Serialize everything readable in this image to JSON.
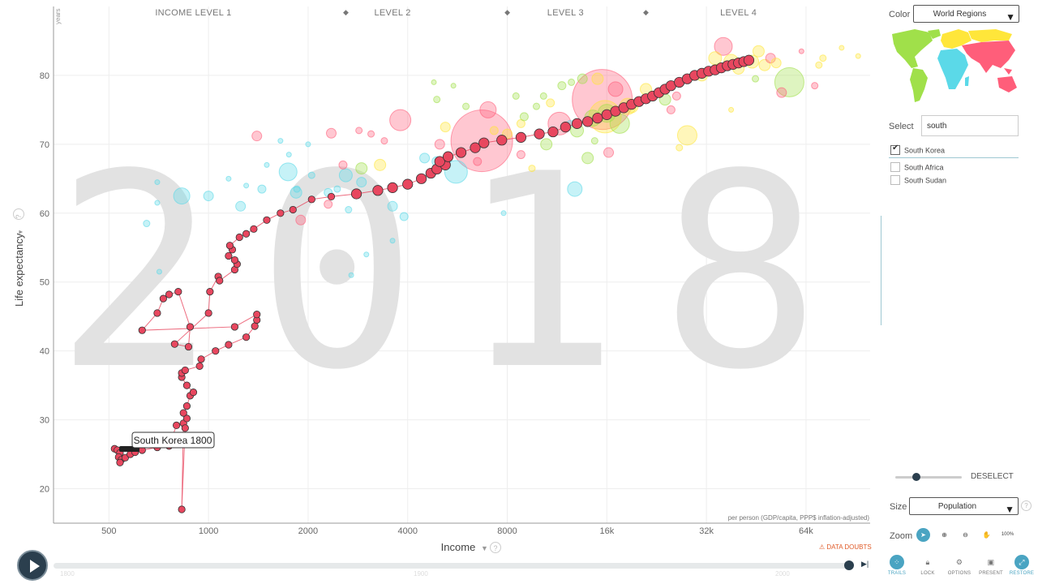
{
  "chart_data": {
    "type": "scatter",
    "watermark_year": "2018",
    "x_axis": {
      "label": "Income",
      "unit": "per person (GDP/capita, PPP$ inflation-adjusted)",
      "scale": "log",
      "range": [
        340,
        100000
      ],
      "ticks": [
        {
          "value": 500,
          "label": "500"
        },
        {
          "value": 1000,
          "label": "1000"
        },
        {
          "value": 2000,
          "label": "2000"
        },
        {
          "value": 4000,
          "label": "4000"
        },
        {
          "value": 8000,
          "label": "8000"
        },
        {
          "value": 16000,
          "label": "16k"
        },
        {
          "value": 32000,
          "label": "32k"
        },
        {
          "value": 64000,
          "label": "64k"
        }
      ]
    },
    "y_axis": {
      "label": "Life expectancy",
      "unit": "years",
      "range": [
        15,
        90
      ],
      "ticks": [
        20,
        30,
        40,
        50,
        60,
        70,
        80
      ]
    },
    "income_levels": [
      {
        "label": "INCOME LEVEL 1",
        "x": 900
      },
      {
        "label": "LEVEL 2",
        "x": 3600
      },
      {
        "label": "LEVEL 3",
        "x": 12000
      },
      {
        "label": "LEVEL 4",
        "x": 40000
      }
    ],
    "income_level_markers": [
      2600,
      8000,
      21000
    ],
    "region_colors": {
      "africa": "#5bd9e8",
      "americas": "#a0e04a",
      "asia": "#ff5e7a",
      "europe": "#ffe63a"
    },
    "trail": {
      "name": "South Korea",
      "color": "#e8475f",
      "tooltip": "South Korea 1800",
      "points": [
        [
          520,
          25.8
        ],
        [
          530,
          25.6
        ],
        [
          540,
          25.2
        ],
        [
          535,
          24.6
        ],
        [
          545,
          24.2
        ],
        [
          540,
          23.8
        ],
        [
          560,
          24.5
        ],
        [
          580,
          25.0
        ],
        [
          600,
          25.3
        ],
        [
          630,
          25.6
        ],
        [
          700,
          26.0
        ],
        [
          760,
          26.2
        ],
        [
          800,
          29.2
        ],
        [
          840,
          29.5
        ],
        [
          830,
          17.0
        ],
        [
          850,
          28.8
        ],
        [
          860,
          30.2
        ],
        [
          840,
          31.0
        ],
        [
          860,
          32.0
        ],
        [
          880,
          33.5
        ],
        [
          900,
          34.0
        ],
        [
          860,
          35.0
        ],
        [
          830,
          36.2
        ],
        [
          830,
          36.8
        ],
        [
          850,
          37.2
        ],
        [
          940,
          37.8
        ],
        [
          950,
          38.8
        ],
        [
          1050,
          40.0
        ],
        [
          1150,
          40.9
        ],
        [
          1300,
          42.0
        ],
        [
          1380,
          43.6
        ],
        [
          1400,
          44.5
        ],
        [
          1400,
          45.3
        ],
        [
          1200,
          43.5
        ],
        [
          630,
          43.0
        ],
        [
          700,
          45.5
        ],
        [
          730,
          47.6
        ],
        [
          760,
          48.2
        ],
        [
          810,
          48.6
        ],
        [
          880,
          43.5
        ],
        [
          870,
          40.6
        ],
        [
          790,
          41.0
        ],
        [
          1000,
          45.5
        ],
        [
          1010,
          48.6
        ],
        [
          1070,
          50.8
        ],
        [
          1080,
          50.2
        ],
        [
          1200,
          51.8
        ],
        [
          1220,
          52.6
        ],
        [
          1200,
          53.2
        ],
        [
          1150,
          53.8
        ],
        [
          1180,
          54.7
        ],
        [
          1160,
          55.3
        ],
        [
          1240,
          56.5
        ],
        [
          1300,
          57.0
        ],
        [
          1370,
          57.7
        ],
        [
          1500,
          59.0
        ],
        [
          1650,
          60.0
        ],
        [
          1800,
          60.5
        ],
        [
          2050,
          62.0
        ],
        [
          2350,
          62.4
        ],
        [
          2800,
          62.8
        ],
        [
          3250,
          63.3
        ],
        [
          3600,
          63.7
        ],
        [
          4000,
          64.2
        ],
        [
          4400,
          65.0
        ],
        [
          4700,
          65.8
        ],
        [
          4900,
          66.4
        ],
        [
          5200,
          67.0
        ],
        [
          5000,
          67.5
        ],
        [
          5300,
          68.2
        ],
        [
          5800,
          68.8
        ],
        [
          6400,
          69.5
        ],
        [
          6800,
          70.2
        ],
        [
          7700,
          70.6
        ],
        [
          8800,
          71.0
        ],
        [
          10000,
          71.5
        ],
        [
          11000,
          71.8
        ],
        [
          12000,
          72.5
        ],
        [
          13000,
          73.0
        ],
        [
          14000,
          73.3
        ],
        [
          15000,
          73.8
        ],
        [
          16000,
          74.3
        ],
        [
          17000,
          74.8
        ],
        [
          18000,
          75.3
        ],
        [
          19000,
          75.8
        ],
        [
          20000,
          76.2
        ],
        [
          21000,
          76.6
        ],
        [
          22000,
          77.0
        ],
        [
          23000,
          77.5
        ],
        [
          24000,
          78.0
        ],
        [
          25000,
          78.5
        ],
        [
          26500,
          79.0
        ],
        [
          28000,
          79.5
        ],
        [
          29500,
          80.0
        ],
        [
          31000,
          80.3
        ],
        [
          32500,
          80.6
        ],
        [
          34000,
          80.8
        ],
        [
          35500,
          81.1
        ],
        [
          37000,
          81.4
        ],
        [
          38500,
          81.6
        ],
        [
          40000,
          81.8
        ],
        [
          41500,
          82.0
        ],
        [
          43000,
          82.2
        ]
      ]
    },
    "bubbles": [
      {
        "x": 6700,
        "y": 70.5,
        "r": 38,
        "region": "asia"
      },
      {
        "x": 15500,
        "y": 76.5,
        "r": 37,
        "region": "asia"
      },
      {
        "x": 57000,
        "y": 79,
        "r": 18,
        "region": "americas"
      },
      {
        "x": 15800,
        "y": 74,
        "r": 20,
        "region": "europe"
      },
      {
        "x": 11500,
        "y": 73,
        "r": 14,
        "region": "asia"
      },
      {
        "x": 3800,
        "y": 73.5,
        "r": 13,
        "region": "asia"
      },
      {
        "x": 5600,
        "y": 66,
        "r": 14,
        "region": "africa"
      },
      {
        "x": 7000,
        "y": 75,
        "r": 10,
        "region": "asia"
      },
      {
        "x": 36000,
        "y": 84.2,
        "r": 11,
        "region": "asia"
      },
      {
        "x": 28000,
        "y": 71.3,
        "r": 12,
        "region": "europe"
      },
      {
        "x": 17500,
        "y": 73,
        "r": 12,
        "region": "americas"
      },
      {
        "x": 14000,
        "y": 68,
        "r": 7,
        "region": "americas"
      },
      {
        "x": 12800,
        "y": 63.5,
        "r": 9,
        "region": "africa"
      },
      {
        "x": 18500,
        "y": 75.5,
        "r": 10,
        "region": "europe"
      },
      {
        "x": 16000,
        "y": 74.5,
        "r": 11,
        "region": "americas"
      },
      {
        "x": 14500,
        "y": 73.8,
        "r": 10,
        "region": "americas"
      },
      {
        "x": 1740,
        "y": 66,
        "r": 11,
        "region": "africa"
      },
      {
        "x": 2600,
        "y": 65.5,
        "r": 8,
        "region": "africa"
      },
      {
        "x": 2900,
        "y": 64.5,
        "r": 6,
        "region": "africa"
      },
      {
        "x": 1840,
        "y": 63,
        "r": 7,
        "region": "africa"
      },
      {
        "x": 2300,
        "y": 63,
        "r": 5,
        "region": "africa"
      },
      {
        "x": 830,
        "y": 62.5,
        "r": 10,
        "region": "africa"
      },
      {
        "x": 1000,
        "y": 62.5,
        "r": 6,
        "region": "africa"
      },
      {
        "x": 1250,
        "y": 61,
        "r": 6,
        "region": "africa"
      },
      {
        "x": 1450,
        "y": 63.5,
        "r": 5,
        "region": "africa"
      },
      {
        "x": 3600,
        "y": 61,
        "r": 6,
        "region": "africa"
      },
      {
        "x": 3900,
        "y": 59.5,
        "r": 5,
        "region": "africa"
      },
      {
        "x": 4500,
        "y": 68,
        "r": 6,
        "region": "africa"
      },
      {
        "x": 4900,
        "y": 67.5,
        "r": 6,
        "region": "africa"
      },
      {
        "x": 2900,
        "y": 66.5,
        "r": 7,
        "region": "americas"
      },
      {
        "x": 1900,
        "y": 59,
        "r": 6,
        "region": "asia"
      },
      {
        "x": 2300,
        "y": 61.3,
        "r": 5,
        "region": "asia"
      },
      {
        "x": 2350,
        "y": 71.6,
        "r": 6,
        "region": "asia"
      },
      {
        "x": 3100,
        "y": 71.5,
        "r": 4,
        "region": "asia"
      },
      {
        "x": 3300,
        "y": 67,
        "r": 7,
        "region": "europe"
      },
      {
        "x": 2550,
        "y": 67,
        "r": 5,
        "region": "asia"
      },
      {
        "x": 1400,
        "y": 71.2,
        "r": 6,
        "region": "asia"
      },
      {
        "x": 5200,
        "y": 72.5,
        "r": 6,
        "region": "europe"
      },
      {
        "x": 5000,
        "y": 70,
        "r": 6,
        "region": "asia"
      },
      {
        "x": 8000,
        "y": 71.5,
        "r": 6,
        "region": "europe"
      },
      {
        "x": 8800,
        "y": 73,
        "r": 5,
        "region": "europe"
      },
      {
        "x": 9000,
        "y": 74,
        "r": 5,
        "region": "americas"
      },
      {
        "x": 10500,
        "y": 70,
        "r": 7,
        "region": "americas"
      },
      {
        "x": 13000,
        "y": 72,
        "r": 8,
        "region": "americas"
      },
      {
        "x": 13500,
        "y": 79.5,
        "r": 6,
        "region": "americas"
      },
      {
        "x": 15000,
        "y": 79.5,
        "r": 7,
        "region": "europe"
      },
      {
        "x": 17000,
        "y": 78,
        "r": 9,
        "region": "asia"
      },
      {
        "x": 19000,
        "y": 75.5,
        "r": 8,
        "region": "europe"
      },
      {
        "x": 21000,
        "y": 78,
        "r": 7,
        "region": "europe"
      },
      {
        "x": 22000,
        "y": 77,
        "r": 6,
        "region": "americas"
      },
      {
        "x": 24000,
        "y": 76.5,
        "r": 7,
        "region": "americas"
      },
      {
        "x": 26000,
        "y": 77,
        "r": 5,
        "region": "asia"
      },
      {
        "x": 25000,
        "y": 75,
        "r": 5,
        "region": "asia"
      },
      {
        "x": 31000,
        "y": 80,
        "r": 7,
        "region": "europe"
      },
      {
        "x": 34000,
        "y": 82.5,
        "r": 8,
        "region": "europe"
      },
      {
        "x": 38000,
        "y": 82,
        "r": 9,
        "region": "europe"
      },
      {
        "x": 40000,
        "y": 81,
        "r": 7,
        "region": "europe"
      },
      {
        "x": 44000,
        "y": 82,
        "r": 8,
        "region": "europe"
      },
      {
        "x": 46000,
        "y": 83.5,
        "r": 7,
        "region": "europe"
      },
      {
        "x": 48000,
        "y": 81.5,
        "r": 7,
        "region": "europe"
      },
      {
        "x": 50000,
        "y": 82.5,
        "r": 6,
        "region": "asia"
      },
      {
        "x": 52000,
        "y": 81.8,
        "r": 6,
        "region": "europe"
      },
      {
        "x": 54000,
        "y": 77.5,
        "r": 6,
        "region": "asia"
      },
      {
        "x": 70000,
        "y": 81.5,
        "r": 4,
        "region": "europe"
      },
      {
        "x": 68000,
        "y": 78.5,
        "r": 4,
        "region": "asia"
      },
      {
        "x": 72000,
        "y": 82.5,
        "r": 4,
        "region": "europe"
      },
      {
        "x": 82000,
        "y": 84,
        "r": 3,
        "region": "europe"
      },
      {
        "x": 92000,
        "y": 82.8,
        "r": 3,
        "region": "europe"
      },
      {
        "x": 62000,
        "y": 83.5,
        "r": 3,
        "region": "asia"
      },
      {
        "x": 8800,
        "y": 68.5,
        "r": 5,
        "region": "asia"
      },
      {
        "x": 9800,
        "y": 75.5,
        "r": 4,
        "region": "americas"
      },
      {
        "x": 9500,
        "y": 66.5,
        "r": 4,
        "region": "europe"
      },
      {
        "x": 10300,
        "y": 77,
        "r": 4,
        "region": "americas"
      },
      {
        "x": 11700,
        "y": 78.5,
        "r": 5,
        "region": "americas"
      },
      {
        "x": 12500,
        "y": 79,
        "r": 4,
        "region": "americas"
      },
      {
        "x": 6500,
        "y": 67.5,
        "r": 5,
        "region": "asia"
      },
      {
        "x": 7300,
        "y": 72,
        "r": 5,
        "region": "europe"
      },
      {
        "x": 4800,
        "y": 79,
        "r": 3,
        "region": "americas"
      },
      {
        "x": 5500,
        "y": 78.5,
        "r": 3,
        "region": "americas"
      },
      {
        "x": 8500,
        "y": 77,
        "r": 4,
        "region": "americas"
      },
      {
        "x": 10800,
        "y": 76,
        "r": 5,
        "region": "europe"
      },
      {
        "x": 16200,
        "y": 68.8,
        "r": 6,
        "region": "asia"
      },
      {
        "x": 26500,
        "y": 69.5,
        "r": 4,
        "region": "europe"
      },
      {
        "x": 38000,
        "y": 75,
        "r": 3,
        "region": "europe"
      },
      {
        "x": 45000,
        "y": 79.5,
        "r": 4,
        "region": "americas"
      },
      {
        "x": 7800,
        "y": 60,
        "r": 3,
        "region": "africa"
      },
      {
        "x": 3600,
        "y": 56,
        "r": 3,
        "region": "africa"
      },
      {
        "x": 3000,
        "y": 54,
        "r": 3,
        "region": "africa"
      },
      {
        "x": 1500,
        "y": 67,
        "r": 3,
        "region": "africa"
      },
      {
        "x": 1300,
        "y": 64,
        "r": 3,
        "region": "africa"
      },
      {
        "x": 1750,
        "y": 68.5,
        "r": 3,
        "region": "africa"
      },
      {
        "x": 1150,
        "y": 65,
        "r": 3,
        "region": "africa"
      },
      {
        "x": 700,
        "y": 64.5,
        "r": 3,
        "region": "africa"
      },
      {
        "x": 650,
        "y": 58.5,
        "r": 4,
        "region": "africa"
      },
      {
        "x": 710,
        "y": 51.5,
        "r": 3,
        "region": "africa"
      },
      {
        "x": 2700,
        "y": 51,
        "r": 3,
        "region": "africa"
      },
      {
        "x": 2650,
        "y": 60.5,
        "r": 4,
        "region": "africa"
      },
      {
        "x": 2450,
        "y": 63.5,
        "r": 4,
        "region": "africa"
      },
      {
        "x": 700,
        "y": 61.5,
        "r": 3,
        "region": "africa"
      },
      {
        "x": 2000,
        "y": 70,
        "r": 3,
        "region": "africa"
      },
      {
        "x": 1650,
        "y": 70.5,
        "r": 3,
        "region": "africa"
      },
      {
        "x": 1850,
        "y": 63.5,
        "r": 4,
        "region": "africa"
      },
      {
        "x": 2050,
        "y": 65.5,
        "r": 4,
        "region": "africa"
      },
      {
        "x": 3400,
        "y": 70.5,
        "r": 4,
        "region": "asia"
      },
      {
        "x": 2850,
        "y": 72,
        "r": 4,
        "region": "asia"
      },
      {
        "x": 4900,
        "y": 76.5,
        "r": 4,
        "region": "americas"
      },
      {
        "x": 6000,
        "y": 75.5,
        "r": 4,
        "region": "americas"
      },
      {
        "x": 12400,
        "y": 73,
        "r": 4,
        "region": "africa"
      },
      {
        "x": 14700,
        "y": 70.5,
        "r": 4,
        "region": "americas"
      }
    ]
  },
  "sidebar": {
    "color_label": "Color",
    "color_value": "World Regions",
    "select_label": "Select",
    "search_value": "south",
    "results": [
      {
        "label": "South Korea",
        "checked": true
      },
      {
        "label": "South Africa",
        "checked": false
      },
      {
        "label": "South Sudan",
        "checked": false
      }
    ],
    "deselect_label": "DESELECT",
    "size_label": "Size",
    "size_value": "Population",
    "zoom_label": "Zoom",
    "zoom_percent": "100%"
  },
  "toolbar": {
    "trails": "TRAILS",
    "lock": "LOCK",
    "options": "OPTIONS",
    "present": "PRESENT",
    "restore": "RESTORE"
  },
  "footer": {
    "data_doubts": "DATA DOUBTS",
    "timeline_start": "1800",
    "timeline_mid": "1900",
    "timeline_end": "2000",
    "timeline_progress": 0.989
  },
  "colors": {
    "accent": "#2b3f4e",
    "tool_active": "#4aa4c2",
    "warning": "#e05c2a"
  }
}
